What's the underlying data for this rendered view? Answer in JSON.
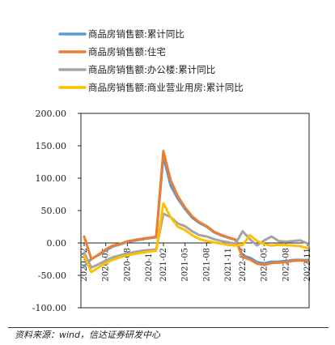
{
  "chart_data": {
    "type": "line",
    "x": [
      "2020-02",
      "2020-03",
      "2020-04",
      "2020-05",
      "2020-06",
      "2020-07",
      "2020-08",
      "2020-09",
      "2020-10",
      "2020-11",
      "2020-12",
      "2021-02",
      "2021-03",
      "2021-04",
      "2021-05",
      "2021-06",
      "2021-07",
      "2021-08",
      "2021-09",
      "2021-10",
      "2021-11",
      "2021-12",
      "2022-02",
      "2022-03",
      "2022-04",
      "2022-05",
      "2022-06",
      "2022-07",
      "2022-08",
      "2022-09",
      "2022-10",
      "2022-11"
    ],
    "x_tick_labels": [
      "2020-02",
      "2020-05",
      "2020-08",
      "2020-11",
      "2021-02",
      "2021-05",
      "2021-08",
      "2021-11",
      "2022-02",
      "2022-05",
      "2022-08",
      "2022-11"
    ],
    "series": [
      {
        "name": "商品房销售额:累计同比",
        "color": "#5b9bd5",
        "values": [
          -35.9,
          -24.7,
          -18.6,
          -11.6,
          -5.4,
          -2.1,
          1.6,
          3.7,
          5.5,
          7.2,
          8.7,
          133.4,
          88.5,
          68.2,
          52.4,
          38.9,
          30.7,
          25.0,
          16.6,
          11.8,
          8.0,
          4.8,
          -19.3,
          -22.7,
          -29.5,
          -31.5,
          -28.9,
          -28.8,
          -27.9,
          -26.3,
          -26.1,
          -26.6
        ]
      },
      {
        "name": "商品房销售额:住宅",
        "color": "#ed7d31",
        "values": [
          10.0,
          -25.0,
          -18.0,
          -10.0,
          -4.0,
          -1.5,
          2.5,
          4.5,
          6.5,
          8.0,
          9.5,
          142.0,
          97.0,
          72.0,
          55.0,
          41.0,
          32.0,
          26.0,
          17.5,
          12.5,
          8.5,
          5.3,
          -22.0,
          -25.6,
          -32.0,
          -34.0,
          -31.0,
          -30.5,
          -29.5,
          -27.5,
          -27.0,
          -28.0
        ]
      },
      {
        "name": "商品房销售额:办公楼:累计同比",
        "color": "#a5a5a5",
        "values": [
          -15.0,
          -38.0,
          -33.0,
          -27.0,
          -22.0,
          -19.0,
          -16.0,
          -14.0,
          -12.0,
          -11.0,
          -10.0,
          45.0,
          40.0,
          30.0,
          26.0,
          18.0,
          12.0,
          10.0,
          6.0,
          3.0,
          1.0,
          -1.0,
          18.0,
          6.0,
          -4.0,
          4.0,
          10.0,
          3.0,
          2.0,
          3.0,
          4.0,
          -1.0
        ]
      },
      {
        "name": "商品房销售额:商业营业用房:累计同比",
        "color": "#ffc000",
        "values": [
          -20.0,
          -45.0,
          -38.0,
          -31.0,
          -26.0,
          -22.0,
          -19.0,
          -17.0,
          -15.0,
          -13.5,
          -12.0,
          61.0,
          40.0,
          25.0,
          20.0,
          12.0,
          6.0,
          3.0,
          1.0,
          -1.0,
          -3.0,
          -4.0,
          -3.0,
          12.0,
          3.0,
          -2.0,
          -4.0,
          -3.0,
          -3.5,
          -4.0,
          -5.0,
          -8.0
        ]
      }
    ],
    "ylim": [
      -100,
      200
    ],
    "yticks": [
      "200.00",
      "150.00",
      "100.00",
      "50.00",
      "0.00",
      "-50.00",
      "-100.00"
    ],
    "legend_position": "top",
    "grid": false
  },
  "source_note": "资料来源：wind，信达证券研发中心"
}
